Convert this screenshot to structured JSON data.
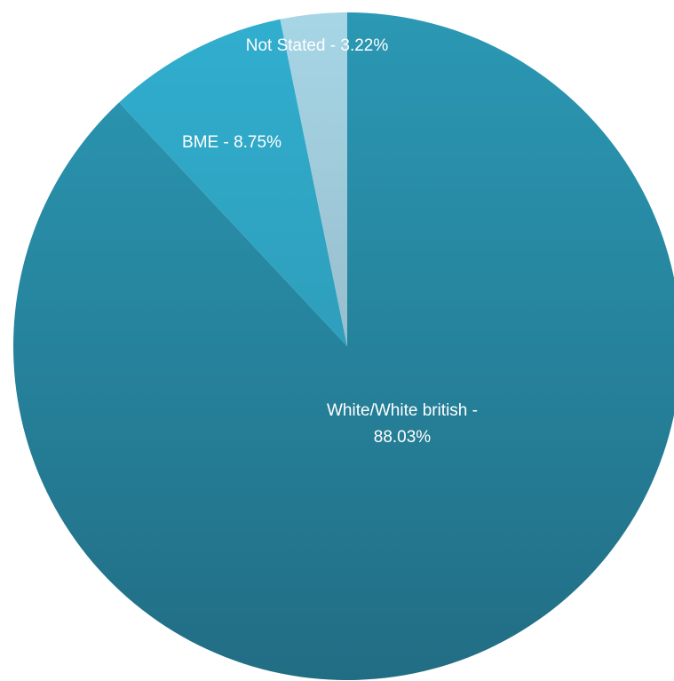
{
  "chart_data": {
    "type": "pie",
    "title": "",
    "start_angle_deg": 0,
    "direction": "clockwise",
    "legend": "none",
    "slices": [
      {
        "name": "White/White british",
        "value": 88.03,
        "label_lines": [
          "White/White british -",
          "88.03%"
        ],
        "color_top": "#2b98b4",
        "color_bottom": "#216d84"
      },
      {
        "name": "BME",
        "value": 8.75,
        "label_lines": [
          "BME - 8.75%"
        ],
        "color_top": "#31aecf",
        "color_bottom": "#2b8fa8"
      },
      {
        "name": "Not Stated",
        "value": 3.22,
        "label_lines": [
          "Not Stated - 3.22%"
        ],
        "color_top": "#a6d6e6",
        "color_bottom": "#8aa6b3"
      }
    ]
  }
}
